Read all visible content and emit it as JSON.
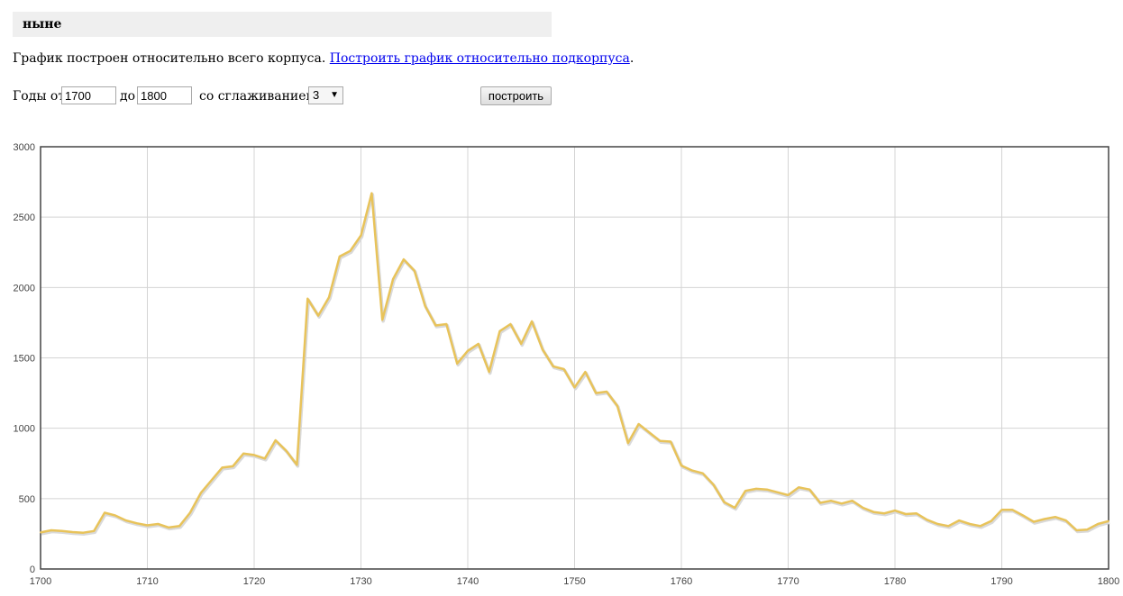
{
  "query": {
    "word": "ныне"
  },
  "info": {
    "text": "График построен относительно всего корпуса.",
    "link": "Построить график относительно подкорпуса",
    "tail": "."
  },
  "controls": {
    "years_from_label": "Годы от",
    "year_from": "1700",
    "to_label": "до",
    "year_to": "1800",
    "smoothing_label": "со сглаживанием",
    "smoothing_value": "3",
    "build_button": "построить"
  },
  "chart_data": {
    "type": "line",
    "title": "",
    "xlabel": "",
    "ylabel": "",
    "xlim": [
      1700,
      1800
    ],
    "ylim": [
      0,
      3000
    ],
    "x_ticks": [
      1700,
      1710,
      1720,
      1730,
      1740,
      1750,
      1760,
      1770,
      1780,
      1790,
      1800
    ],
    "y_ticks": [
      0,
      500,
      1000,
      1500,
      2000,
      2500,
      3000
    ],
    "grid": true,
    "line_color": "#e8c35a",
    "series": [
      {
        "x": [
          1700,
          1701,
          1702,
          1703,
          1704,
          1705,
          1706,
          1707,
          1708,
          1709,
          1710,
          1711,
          1712,
          1713,
          1714,
          1715,
          1716,
          1717,
          1718,
          1719,
          1720,
          1721,
          1722,
          1723,
          1724,
          1725,
          1726,
          1727,
          1728,
          1729,
          1730,
          1731,
          1732,
          1733,
          1734,
          1735,
          1736,
          1737,
          1738,
          1739,
          1740,
          1741,
          1742,
          1743,
          1744,
          1745,
          1746,
          1747,
          1748,
          1749,
          1750,
          1751,
          1752,
          1753,
          1754,
          1755,
          1756,
          1757,
          1758,
          1759,
          1760,
          1761,
          1762,
          1763,
          1764,
          1765,
          1766,
          1767,
          1768,
          1769,
          1770,
          1771,
          1772,
          1773,
          1774,
          1775,
          1776,
          1777,
          1778,
          1779,
          1780,
          1781,
          1782,
          1783,
          1784,
          1785,
          1786,
          1787,
          1788,
          1789,
          1790,
          1791,
          1792,
          1793,
          1794,
          1795,
          1796,
          1797,
          1798,
          1799,
          1800
        ],
        "values": [
          260,
          275,
          270,
          262,
          258,
          270,
          400,
          380,
          345,
          325,
          310,
          320,
          295,
          305,
          400,
          540,
          630,
          720,
          730,
          820,
          810,
          785,
          915,
          840,
          740,
          1920,
          1800,
          1930,
          2220,
          2260,
          2370,
          2670,
          1770,
          2060,
          2200,
          2120,
          1870,
          1730,
          1740,
          1460,
          1550,
          1600,
          1400,
          1690,
          1740,
          1600,
          1760,
          1560,
          1440,
          1420,
          1290,
          1400,
          1250,
          1260,
          1160,
          895,
          1030,
          970,
          910,
          905,
          735,
          700,
          680,
          600,
          475,
          435,
          555,
          570,
          565,
          545,
          525,
          580,
          565,
          470,
          485,
          465,
          485,
          435,
          405,
          395,
          415,
          390,
          395,
          350,
          320,
          305,
          345,
          320,
          305,
          340,
          420,
          420,
          380,
          335,
          355,
          370,
          345,
          275,
          280,
          320,
          340
        ]
      }
    ]
  }
}
